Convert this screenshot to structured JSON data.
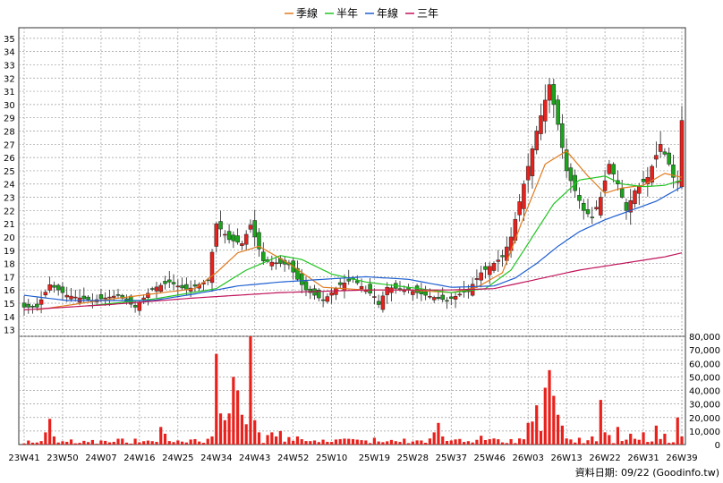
{
  "legend": [
    {
      "label": "季線",
      "color": "#e07b1f"
    },
    {
      "label": "半年",
      "color": "#22c422"
    },
    {
      "label": "年線",
      "color": "#1e5fd0"
    },
    {
      "label": "三年",
      "color": "#c0135a"
    }
  ],
  "footer": "資料日期: 09/22 (Goodinfo.tw)",
  "chart_data": [
    {
      "type": "candlestick",
      "title": "",
      "ylim": [
        12.5,
        35.8
      ],
      "yticks": [
        13,
        14,
        15,
        16,
        17,
        18,
        19,
        20,
        21,
        22,
        23,
        24,
        25,
        26,
        27,
        28,
        29,
        30,
        31,
        32,
        33,
        34,
        35
      ],
      "xticks": [
        "23W41",
        "23W50",
        "24W07",
        "24W16",
        "24W25",
        "24W34",
        "24W43",
        "24W52",
        "25W10",
        "25W19",
        "25W28",
        "25W37",
        "25W46",
        "26W03",
        "26W13",
        "26W22",
        "26W31",
        "26W39"
      ],
      "grid": true,
      "up_color": "#e8211c",
      "down_color": "#1aa51a",
      "weekly_ohlc_note": "weekly candles, 155 weeks from 23W41 to 26W39",
      "close_keypoints": [
        [
          0,
          14.7
        ],
        [
          3,
          14.7
        ],
        [
          6,
          16.4
        ],
        [
          10,
          15.6
        ],
        [
          16,
          15.2
        ],
        [
          22,
          15.6
        ],
        [
          26,
          14.7
        ],
        [
          30,
          16.1
        ],
        [
          34,
          16.6
        ],
        [
          38,
          16.0
        ],
        [
          43,
          16.7
        ],
        [
          45,
          21.0
        ],
        [
          48,
          19.8
        ],
        [
          51,
          19.5
        ],
        [
          53,
          20.9
        ],
        [
          56,
          18.2
        ],
        [
          62,
          17.9
        ],
        [
          64,
          16.8
        ],
        [
          66,
          16.0
        ],
        [
          70,
          15.2
        ],
        [
          74,
          16.4
        ],
        [
          77,
          16.8
        ],
        [
          80,
          16.0
        ],
        [
          82,
          15.5
        ],
        [
          83,
          14.9
        ],
        [
          85,
          16.2
        ],
        [
          90,
          16.0
        ],
        [
          94,
          15.6
        ],
        [
          99,
          15.2
        ],
        [
          104,
          16.0
        ],
        [
          107,
          17.3
        ],
        [
          112,
          18.5
        ],
        [
          114,
          20.0
        ],
        [
          117,
          24.0
        ],
        [
          120,
          28.0
        ],
        [
          123,
          31.5
        ],
        [
          125,
          28.5
        ],
        [
          127,
          25.0
        ],
        [
          129,
          23.5
        ],
        [
          131,
          22.0
        ],
        [
          133,
          21.5
        ],
        [
          135,
          23.0
        ],
        [
          137,
          25.5
        ],
        [
          139,
          24.0
        ],
        [
          141,
          22.0
        ],
        [
          143,
          23.5
        ],
        [
          146,
          24.5
        ],
        [
          149,
          27.0
        ],
        [
          151,
          25.5
        ],
        [
          152,
          24.5
        ],
        [
          153,
          24.2
        ],
        [
          154,
          28.8
        ]
      ],
      "moving_averages": [
        {
          "name": "季線",
          "keypoints": [
            [
              3,
              14.5
            ],
            [
              20,
              15.3
            ],
            [
              40,
              16.1
            ],
            [
              45,
              17.3
            ],
            [
              50,
              18.8
            ],
            [
              55,
              19.3
            ],
            [
              62,
              18.0
            ],
            [
              70,
              16.2
            ],
            [
              80,
              16.0
            ],
            [
              90,
              16.0
            ],
            [
              100,
              15.8
            ],
            [
              106,
              16.2
            ],
            [
              112,
              17.3
            ],
            [
              117,
              21.5
            ],
            [
              122,
              25.5
            ],
            [
              127,
              26.5
            ],
            [
              132,
              24.6
            ],
            [
              136,
              23.3
            ],
            [
              140,
              23.7
            ],
            [
              145,
              23.9
            ],
            [
              150,
              24.8
            ],
            [
              154,
              24.5
            ]
          ]
        },
        {
          "name": "半年",
          "keypoints": [
            [
              15,
              14.8
            ],
            [
              30,
              15.3
            ],
            [
              45,
              16.1
            ],
            [
              52,
              17.5
            ],
            [
              60,
              18.6
            ],
            [
              65,
              18.3
            ],
            [
              72,
              17.2
            ],
            [
              80,
              16.6
            ],
            [
              90,
              16.2
            ],
            [
              100,
              15.8
            ],
            [
              108,
              16.1
            ],
            [
              114,
              17.5
            ],
            [
              118,
              19.5
            ],
            [
              124,
              22.5
            ],
            [
              130,
              24.3
            ],
            [
              136,
              24.6
            ],
            [
              140,
              24.0
            ],
            [
              145,
              23.8
            ],
            [
              150,
              23.9
            ],
            [
              154,
              24.3
            ]
          ]
        },
        {
          "name": "年線",
          "keypoints": [
            [
              0,
              15.6
            ],
            [
              10,
              15.2
            ],
            [
              20,
              15.2
            ],
            [
              30,
              15.2
            ],
            [
              40,
              15.7
            ],
            [
              50,
              16.3
            ],
            [
              60,
              16.6
            ],
            [
              70,
              16.8
            ],
            [
              80,
              17.0
            ],
            [
              90,
              16.8
            ],
            [
              100,
              16.2
            ],
            [
              110,
              16.3
            ],
            [
              115,
              16.9
            ],
            [
              120,
              18.0
            ],
            [
              125,
              19.3
            ],
            [
              130,
              20.4
            ],
            [
              136,
              21.3
            ],
            [
              142,
              22.0
            ],
            [
              148,
              22.7
            ],
            [
              154,
              23.8
            ]
          ]
        },
        {
          "name": "三年",
          "keypoints": [
            [
              0,
              14.5
            ],
            [
              20,
              14.9
            ],
            [
              40,
              15.4
            ],
            [
              60,
              15.8
            ],
            [
              80,
              16.0
            ],
            [
              100,
              16.0
            ],
            [
              110,
              16.1
            ],
            [
              120,
              16.8
            ],
            [
              130,
              17.5
            ],
            [
              140,
              18.0
            ],
            [
              150,
              18.5
            ],
            [
              154,
              18.8
            ]
          ]
        }
      ]
    },
    {
      "type": "bar",
      "title": "",
      "ylim": [
        0,
        80000
      ],
      "yticks": [
        0,
        10000,
        20000,
        30000,
        40000,
        50000,
        60000,
        70000,
        80000
      ],
      "ytick_labels": [
        "0",
        "10,000",
        "20,000",
        "30,000",
        "40,000",
        "50,000",
        "60,000",
        "70,000",
        "80,000"
      ],
      "bar_color": "#e8211c",
      "volume_spikes": [
        [
          0,
          800
        ],
        [
          3,
          1500
        ],
        [
          5,
          9000
        ],
        [
          6,
          19000
        ],
        [
          7,
          6000
        ],
        [
          8,
          1500
        ],
        [
          12,
          900
        ],
        [
          17,
          600
        ],
        [
          21,
          2000
        ],
        [
          25,
          700
        ],
        [
          30,
          2500
        ],
        [
          32,
          13000
        ],
        [
          33,
          8000
        ],
        [
          36,
          3000
        ],
        [
          40,
          4000
        ],
        [
          44,
          6000
        ],
        [
          45,
          67000
        ],
        [
          46,
          23000
        ],
        [
          47,
          18000
        ],
        [
          48,
          23000
        ],
        [
          49,
          50000
        ],
        [
          50,
          40000
        ],
        [
          51,
          22000
        ],
        [
          52,
          15000
        ],
        [
          53,
          82000
        ],
        [
          54,
          18000
        ],
        [
          55,
          9000
        ],
        [
          57,
          7000
        ],
        [
          58,
          9000
        ],
        [
          59,
          6000
        ],
        [
          60,
          10000
        ],
        [
          62,
          5500
        ],
        [
          64,
          6000
        ],
        [
          68,
          3000
        ],
        [
          71,
          2000
        ],
        [
          77,
          4000
        ],
        [
          80,
          3000
        ],
        [
          82,
          5000
        ],
        [
          87,
          2500
        ],
        [
          93,
          3000
        ],
        [
          96,
          9000
        ],
        [
          97,
          16000
        ],
        [
          98,
          6000
        ],
        [
          100,
          3000
        ],
        [
          104,
          2500
        ],
        [
          107,
          6500
        ],
        [
          110,
          4500
        ],
        [
          114,
          4000
        ],
        [
          116,
          4500
        ],
        [
          118,
          16000
        ],
        [
          119,
          17000
        ],
        [
          120,
          29000
        ],
        [
          121,
          10000
        ],
        [
          122,
          42000
        ],
        [
          123,
          55000
        ],
        [
          124,
          36000
        ],
        [
          125,
          22000
        ],
        [
          126,
          14000
        ],
        [
          127,
          4500
        ],
        [
          130,
          5000
        ],
        [
          133,
          6000
        ],
        [
          135,
          33000
        ],
        [
          136,
          9000
        ],
        [
          137,
          7000
        ],
        [
          139,
          13000
        ],
        [
          142,
          8000
        ],
        [
          145,
          9000
        ],
        [
          148,
          14000
        ],
        [
          150,
          8000
        ],
        [
          153,
          20000
        ],
        [
          154,
          6000
        ]
      ]
    }
  ]
}
